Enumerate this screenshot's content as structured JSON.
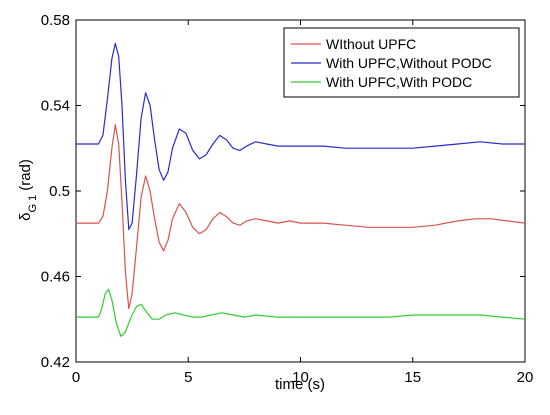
{
  "chart_data": {
    "type": "line",
    "title": "",
    "xlabel": "time (s)",
    "ylabel_main": "δ",
    "ylabel_sub": "G 1",
    "ylabel_unit": "(rad)",
    "xlim": [
      0,
      20
    ],
    "ylim": [
      0.42,
      0.58
    ],
    "xticks": [
      0,
      5,
      10,
      15,
      20
    ],
    "yticks": [
      0.42,
      0.46,
      0.5,
      0.54,
      0.58
    ],
    "grid": false,
    "legend_position": "top-right",
    "series": [
      {
        "name": "WIthout UPFC",
        "color": "#d9534f",
        "points": [
          [
            0,
            0.485
          ],
          [
            0.5,
            0.485
          ],
          [
            1.0,
            0.485
          ],
          [
            1.2,
            0.488
          ],
          [
            1.4,
            0.5
          ],
          [
            1.6,
            0.52
          ],
          [
            1.75,
            0.531
          ],
          [
            1.9,
            0.522
          ],
          [
            2.05,
            0.495
          ],
          [
            2.2,
            0.462
          ],
          [
            2.35,
            0.445
          ],
          [
            2.5,
            0.452
          ],
          [
            2.7,
            0.474
          ],
          [
            2.9,
            0.497
          ],
          [
            3.1,
            0.507
          ],
          [
            3.3,
            0.5
          ],
          [
            3.5,
            0.487
          ],
          [
            3.7,
            0.476
          ],
          [
            3.9,
            0.472
          ],
          [
            4.1,
            0.477
          ],
          [
            4.3,
            0.487
          ],
          [
            4.6,
            0.494
          ],
          [
            4.9,
            0.49
          ],
          [
            5.2,
            0.483
          ],
          [
            5.5,
            0.48
          ],
          [
            5.8,
            0.482
          ],
          [
            6.1,
            0.487
          ],
          [
            6.4,
            0.49
          ],
          [
            6.7,
            0.488
          ],
          [
            7.0,
            0.485
          ],
          [
            7.3,
            0.484
          ],
          [
            7.6,
            0.486
          ],
          [
            8.0,
            0.487
          ],
          [
            8.5,
            0.486
          ],
          [
            9.0,
            0.485
          ],
          [
            9.5,
            0.486
          ],
          [
            10.0,
            0.485
          ],
          [
            11.0,
            0.485
          ],
          [
            12.0,
            0.484
          ],
          [
            13.0,
            0.483
          ],
          [
            14.0,
            0.483
          ],
          [
            15.0,
            0.483
          ],
          [
            16.0,
            0.484
          ],
          [
            17.0,
            0.486
          ],
          [
            17.8,
            0.487
          ],
          [
            18.5,
            0.487
          ],
          [
            19.2,
            0.486
          ],
          [
            20.0,
            0.485
          ]
        ]
      },
      {
        "name": "With UPFC,Without PODC",
        "color": "#2b2bcc",
        "points": [
          [
            0,
            0.522
          ],
          [
            0.5,
            0.522
          ],
          [
            1.0,
            0.522
          ],
          [
            1.2,
            0.526
          ],
          [
            1.4,
            0.543
          ],
          [
            1.6,
            0.562
          ],
          [
            1.75,
            0.569
          ],
          [
            1.9,
            0.563
          ],
          [
            2.05,
            0.54
          ],
          [
            2.2,
            0.505
          ],
          [
            2.35,
            0.482
          ],
          [
            2.5,
            0.485
          ],
          [
            2.7,
            0.508
          ],
          [
            2.9,
            0.534
          ],
          [
            3.1,
            0.546
          ],
          [
            3.3,
            0.54
          ],
          [
            3.5,
            0.524
          ],
          [
            3.7,
            0.51
          ],
          [
            3.9,
            0.505
          ],
          [
            4.1,
            0.509
          ],
          [
            4.3,
            0.52
          ],
          [
            4.6,
            0.529
          ],
          [
            4.9,
            0.527
          ],
          [
            5.2,
            0.519
          ],
          [
            5.5,
            0.515
          ],
          [
            5.8,
            0.517
          ],
          [
            6.1,
            0.522
          ],
          [
            6.4,
            0.526
          ],
          [
            6.7,
            0.524
          ],
          [
            7.0,
            0.52
          ],
          [
            7.3,
            0.519
          ],
          [
            7.6,
            0.521
          ],
          [
            8.0,
            0.523
          ],
          [
            8.5,
            0.522
          ],
          [
            9.0,
            0.521
          ],
          [
            9.5,
            0.521
          ],
          [
            10.0,
            0.521
          ],
          [
            11.0,
            0.521
          ],
          [
            12.0,
            0.52
          ],
          [
            13.0,
            0.52
          ],
          [
            14.0,
            0.52
          ],
          [
            15.0,
            0.52
          ],
          [
            16.0,
            0.521
          ],
          [
            17.0,
            0.522
          ],
          [
            18.0,
            0.523
          ],
          [
            19.0,
            0.522
          ],
          [
            20.0,
            0.522
          ]
        ]
      },
      {
        "name": "With UPFC,With PODC",
        "color": "#33cc33",
        "points": [
          [
            0,
            0.441
          ],
          [
            0.5,
            0.441
          ],
          [
            1.0,
            0.441
          ],
          [
            1.15,
            0.445
          ],
          [
            1.3,
            0.452
          ],
          [
            1.45,
            0.454
          ],
          [
            1.6,
            0.449
          ],
          [
            1.8,
            0.438
          ],
          [
            2.0,
            0.432
          ],
          [
            2.2,
            0.434
          ],
          [
            2.45,
            0.441
          ],
          [
            2.7,
            0.446
          ],
          [
            2.9,
            0.447
          ],
          [
            3.1,
            0.444
          ],
          [
            3.4,
            0.44
          ],
          [
            3.7,
            0.44
          ],
          [
            4.0,
            0.442
          ],
          [
            4.4,
            0.443
          ],
          [
            4.8,
            0.442
          ],
          [
            5.2,
            0.441
          ],
          [
            5.6,
            0.441
          ],
          [
            6.0,
            0.442
          ],
          [
            6.5,
            0.443
          ],
          [
            7.0,
            0.442
          ],
          [
            7.5,
            0.441
          ],
          [
            8.0,
            0.442
          ],
          [
            9.0,
            0.441
          ],
          [
            10.0,
            0.441
          ],
          [
            11.0,
            0.441
          ],
          [
            12.0,
            0.441
          ],
          [
            13.0,
            0.441
          ],
          [
            14.0,
            0.441
          ],
          [
            15.0,
            0.442
          ],
          [
            16.0,
            0.442
          ],
          [
            17.0,
            0.442
          ],
          [
            18.0,
            0.442
          ],
          [
            19.0,
            0.441
          ],
          [
            20.0,
            0.44
          ]
        ]
      }
    ]
  }
}
